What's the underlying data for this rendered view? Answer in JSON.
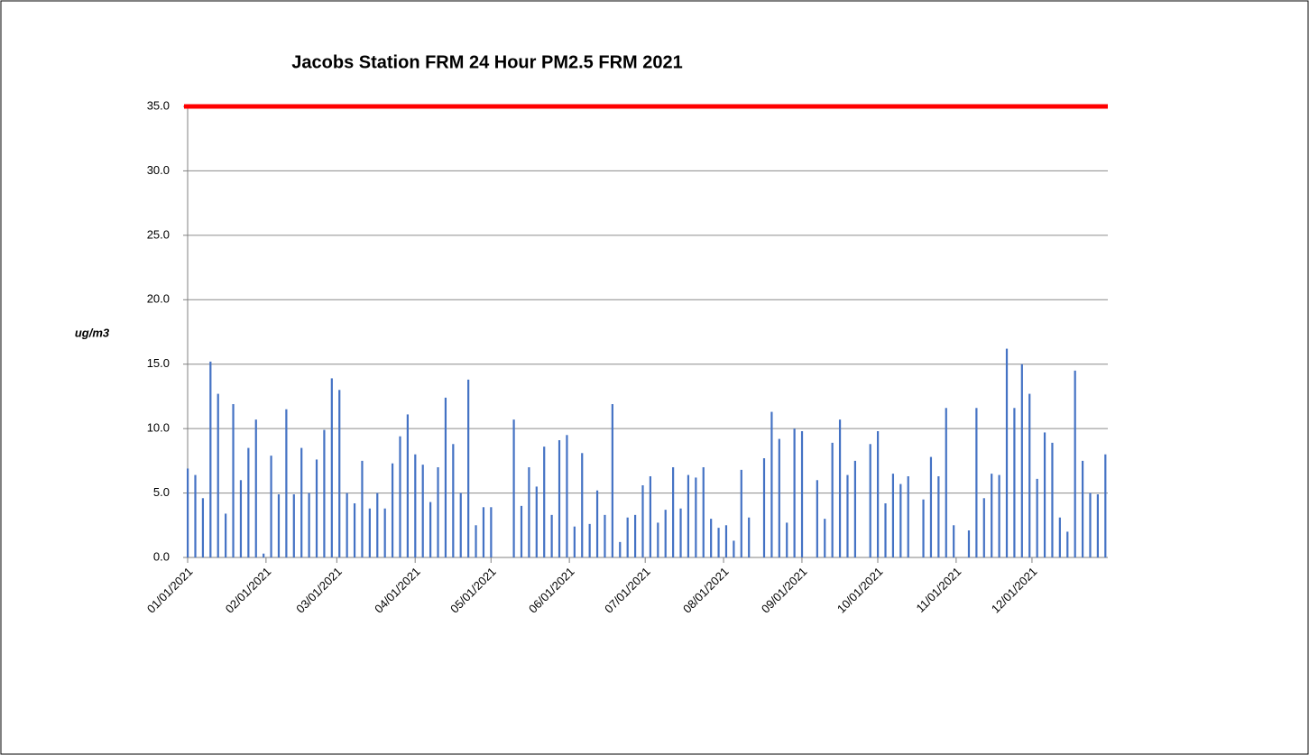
{
  "chart_data": {
    "type": "bar",
    "title": "Jacobs Station FRM 24 Hour PM2.5 FRM 2021",
    "y_label": "ug/m3",
    "color": "#4472c4",
    "grid": true,
    "threshold": {
      "value": 35,
      "color": "#ff0000"
    },
    "x": [
      "01/01/2021",
      "01/04/2021",
      "01/07/2021",
      "01/10/2021",
      "01/13/2021",
      "01/16/2021",
      "01/19/2021",
      "01/22/2021",
      "01/25/2021",
      "01/28/2021",
      "01/31/2021",
      "02/03/2021",
      "02/06/2021",
      "02/09/2021",
      "02/12/2021",
      "02/15/2021",
      "02/18/2021",
      "02/21/2021",
      "02/24/2021",
      "02/27/2021",
      "03/02/2021",
      "03/05/2021",
      "03/08/2021",
      "03/11/2021",
      "03/14/2021",
      "03/17/2021",
      "03/20/2021",
      "03/23/2021",
      "03/26/2021",
      "03/29/2021",
      "04/01/2021",
      "04/04/2021",
      "04/07/2021",
      "04/10/2021",
      "04/13/2021",
      "04/16/2021",
      "04/19/2021",
      "04/22/2021",
      "04/25/2021",
      "04/28/2021",
      "05/01/2021",
      "05/10/2021",
      "05/13/2021",
      "05/16/2021",
      "05/19/2021",
      "05/22/2021",
      "05/25/2021",
      "05/28/2021",
      "05/31/2021",
      "06/03/2021",
      "06/06/2021",
      "06/09/2021",
      "06/12/2021",
      "06/15/2021",
      "06/18/2021",
      "06/21/2021",
      "06/24/2021",
      "06/27/2021",
      "06/30/2021",
      "07/03/2021",
      "07/06/2021",
      "07/09/2021",
      "07/12/2021",
      "07/15/2021",
      "07/18/2021",
      "07/21/2021",
      "07/24/2021",
      "07/27/2021",
      "07/30/2021",
      "08/02/2021",
      "08/05/2021",
      "08/08/2021",
      "08/11/2021",
      "08/17/2021",
      "08/20/2021",
      "08/23/2021",
      "08/26/2021",
      "08/29/2021",
      "09/01/2021",
      "09/07/2021",
      "09/10/2021",
      "09/13/2021",
      "09/16/2021",
      "09/19/2021",
      "09/22/2021",
      "09/28/2021",
      "10/01/2021",
      "10/04/2021",
      "10/07/2021",
      "10/10/2021",
      "10/13/2021",
      "10/19/2021",
      "10/22/2021",
      "10/25/2021",
      "10/28/2021",
      "10/31/2021",
      "11/06/2021",
      "11/09/2021",
      "11/12/2021",
      "11/15/2021",
      "11/18/2021",
      "11/21/2021",
      "11/24/2021",
      "11/27/2021",
      "11/30/2021",
      "12/03/2021",
      "12/06/2021",
      "12/09/2021",
      "12/12/2021",
      "12/15/2021",
      "12/18/2021",
      "12/21/2021",
      "12/24/2021",
      "12/27/2021",
      "12/30/2021"
    ],
    "values": [
      6.9,
      6.4,
      4.6,
      15.2,
      12.7,
      3.4,
      11.9,
      6.0,
      8.5,
      10.7,
      0.3,
      7.9,
      4.9,
      11.5,
      4.9,
      8.5,
      5.0,
      7.6,
      9.9,
      13.9,
      13.0,
      5.0,
      4.2,
      7.5,
      3.8,
      5.0,
      3.8,
      7.3,
      9.4,
      11.1,
      8.0,
      7.2,
      4.3,
      7.0,
      12.4,
      8.8,
      5.0,
      13.8,
      2.5,
      3.9,
      3.9,
      10.7,
      4.0,
      7.0,
      5.5,
      8.6,
      3.3,
      9.1,
      9.5,
      2.4,
      8.1,
      2.6,
      5.2,
      3.3,
      11.9,
      1.2,
      3.1,
      3.3,
      5.6,
      6.3,
      2.7,
      3.7,
      7.0,
      3.8,
      6.4,
      6.2,
      7.0,
      3.0,
      2.3,
      2.5,
      1.3,
      6.8,
      3.1,
      7.7,
      11.3,
      9.2,
      2.7,
      10.0,
      9.8,
      6.0,
      3.0,
      8.9,
      10.7,
      6.4,
      7.5,
      8.8,
      9.8,
      4.2,
      6.5,
      5.7,
      6.3,
      4.5,
      7.8,
      6.3,
      11.6,
      2.5,
      2.1,
      11.6,
      4.6,
      6.5,
      6.4,
      16.2,
      11.6,
      15.0,
      12.7,
      6.1,
      9.7,
      8.9,
      3.1,
      2.0,
      14.5,
      7.5,
      5.0,
      4.9,
      8.0
    ],
    "xlim": [
      "01/01/2021",
      "12/31/2021"
    ],
    "xticks": [
      "01/01/2021",
      "02/01/2021",
      "03/01/2021",
      "04/01/2021",
      "05/01/2021",
      "06/01/2021",
      "07/01/2021",
      "08/01/2021",
      "09/01/2021",
      "10/01/2021",
      "11/01/2021",
      "12/01/2021"
    ],
    "ylim": [
      0,
      35
    ],
    "yticks": [
      {
        "value": 0,
        "label": "0.0"
      },
      {
        "value": 5,
        "label": "5.0"
      },
      {
        "value": 10,
        "label": "10.0"
      },
      {
        "value": 15,
        "label": "15.0"
      },
      {
        "value": 20,
        "label": "20.0"
      },
      {
        "value": 25,
        "label": "25.0"
      },
      {
        "value": 30,
        "label": "30.0"
      },
      {
        "value": 35,
        "label": "35.0"
      }
    ]
  }
}
